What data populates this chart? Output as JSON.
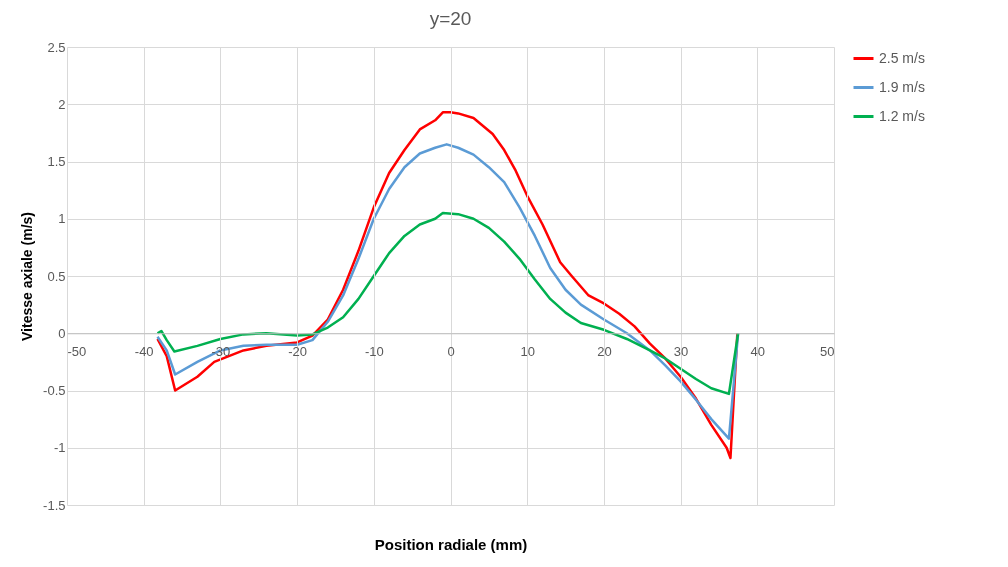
{
  "chart_data": {
    "type": "line",
    "title": "y=20",
    "xlabel": "Position radiale (mm)",
    "ylabel": "Vitesse axiale (m/s)",
    "xlim": [
      -50,
      50
    ],
    "xticks": [
      -50,
      -40,
      -30,
      -20,
      -10,
      0,
      10,
      20,
      30,
      40,
      50
    ],
    "ylim": [
      -1.5,
      2.5
    ],
    "yticks": [
      -1.5,
      -1,
      -0.5,
      0,
      0.5,
      1,
      1.5,
      2,
      2.5
    ],
    "grid": true,
    "legend": "right",
    "marker": "none",
    "line_style": "solid",
    "series": [
      {
        "name": "2.5 m/s",
        "color": "#ff0000",
        "x": [
          -38.2,
          -37,
          -35.9,
          -33,
          -30.8,
          -27,
          -24,
          -20,
          -18,
          -16,
          -14,
          -12,
          -10,
          -8,
          -6,
          -4,
          -2,
          -1,
          0,
          1,
          3,
          5.5,
          7,
          8.5,
          10,
          12,
          14.3,
          15.8,
          18,
          20,
          22,
          24,
          26,
          28,
          30,
          32,
          34,
          36,
          36.5,
          37.4
        ],
        "values": [
          -0.05,
          -0.2,
          -0.5,
          -0.38,
          -0.25,
          -0.15,
          -0.11,
          -0.08,
          -0.02,
          0.12,
          0.38,
          0.72,
          1.1,
          1.4,
          1.6,
          1.78,
          1.86,
          1.93,
          1.93,
          1.92,
          1.88,
          1.74,
          1.6,
          1.42,
          1.2,
          0.95,
          0.62,
          0.5,
          0.33,
          0.26,
          0.17,
          0.06,
          -0.09,
          -0.22,
          -0.38,
          -0.57,
          -0.8,
          -1.0,
          -1.09,
          0
        ]
      },
      {
        "name": "1.9 m/s",
        "color": "#5b9bd5",
        "x": [
          -38.2,
          -37,
          -35.9,
          -33,
          -30,
          -27,
          -24,
          -20,
          -18,
          -16,
          -14,
          -12,
          -10,
          -8,
          -6,
          -4,
          -2,
          -0.5,
          1,
          3,
          5,
          7,
          9,
          11,
          13,
          15,
          17,
          20,
          23,
          26,
          28,
          30,
          32,
          34,
          36.3,
          37.5
        ],
        "values": [
          -0.03,
          -0.15,
          -0.36,
          -0.25,
          -0.15,
          -0.11,
          -0.1,
          -0.1,
          -0.06,
          0.1,
          0.33,
          0.65,
          1.0,
          1.26,
          1.45,
          1.57,
          1.62,
          1.65,
          1.62,
          1.56,
          1.45,
          1.32,
          1.1,
          0.85,
          0.57,
          0.38,
          0.25,
          0.12,
          0.0,
          -0.15,
          -0.28,
          -0.42,
          -0.58,
          -0.75,
          -0.92,
          0
        ]
      },
      {
        "name": "1.2 m/s",
        "color": "#00b050",
        "x": [
          -38.2,
          -37.7,
          -37,
          -36,
          -33,
          -30,
          -27,
          -24,
          -20,
          -18,
          -16,
          -14,
          -12,
          -10,
          -8,
          -6,
          -4,
          -2,
          -1,
          1,
          3,
          5,
          7,
          9,
          11,
          13,
          15,
          17,
          20,
          23,
          26,
          28,
          30,
          32,
          34,
          36.3,
          37.5
        ],
        "values": [
          0,
          0.02,
          -0.06,
          -0.16,
          -0.11,
          -0.05,
          -0.01,
          0.0,
          -0.02,
          -0.01,
          0.05,
          0.14,
          0.3,
          0.5,
          0.7,
          0.85,
          0.95,
          1.0,
          1.05,
          1.04,
          1.0,
          0.92,
          0.8,
          0.65,
          0.47,
          0.3,
          0.18,
          0.09,
          0.03,
          -0.05,
          -0.15,
          -0.22,
          -0.31,
          -0.4,
          -0.48,
          -0.53,
          0
        ]
      }
    ]
  }
}
